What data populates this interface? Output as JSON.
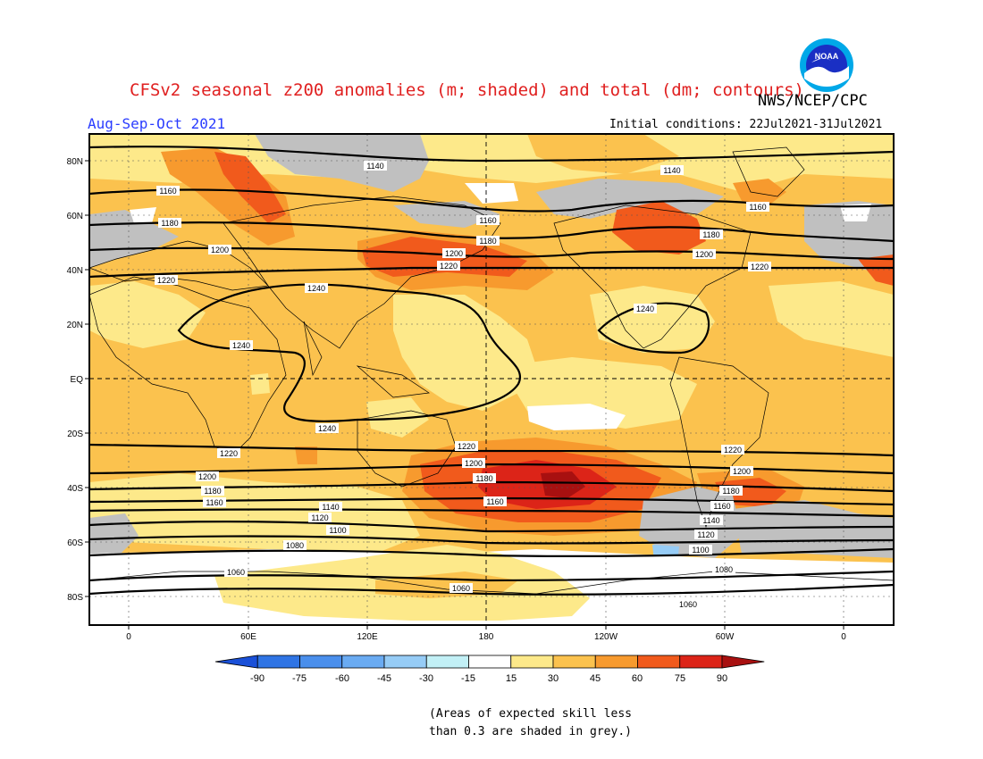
{
  "title": "CFSv2 seasonal z200 anomalies (m; shaded) and total (dm; contours)",
  "agency": "NWS/NCEP/CPC",
  "logo": {
    "text": "NOAA",
    "colors": {
      "ring": "#00a8e8",
      "center": "#1a2fc4",
      "gull": "#ffffff"
    }
  },
  "season": "Aug-Sep-Oct 2021",
  "initial_conditions": "Initial conditions: 22Jul2021-31Jul2021",
  "axes": {
    "lat_labels": [
      "80N",
      "60N",
      "40N",
      "20N",
      "EQ",
      "20S",
      "40S",
      "60S",
      "80S"
    ],
    "lon_labels": [
      "0",
      "60E",
      "120E",
      "180",
      "120W",
      "60W",
      "0"
    ]
  },
  "colorbar": {
    "labels": [
      "-90",
      "-75",
      "-60",
      "-45",
      "-30",
      "-15",
      "15",
      "30",
      "45",
      "60",
      "75",
      "90"
    ],
    "colors": [
      "#1a50d8",
      "#2f74e4",
      "#4a8fec",
      "#6aabf2",
      "#96ccf6",
      "#c2f0f6",
      "#ffffff",
      "#fde98a",
      "#fbc24e",
      "#f79a2e",
      "#f15a1c",
      "#dc2418",
      "#a81010"
    ]
  },
  "anomaly_colors": {
    "w": "#ffffff",
    "y": "#fde98a",
    "o": "#fbc24e",
    "d": "#f79a2e",
    "r": "#f15a1c",
    "k": "#dc2418",
    "g": "#c0c0c0"
  },
  "contour_labels": [
    "1060",
    "1080",
    "1100",
    "1120",
    "1140",
    "1160",
    "1180",
    "1200",
    "1220",
    "1240"
  ],
  "note_line1": "(Areas of expected skill less",
  "note_line2": "than 0.3 are shaded in grey.)"
}
